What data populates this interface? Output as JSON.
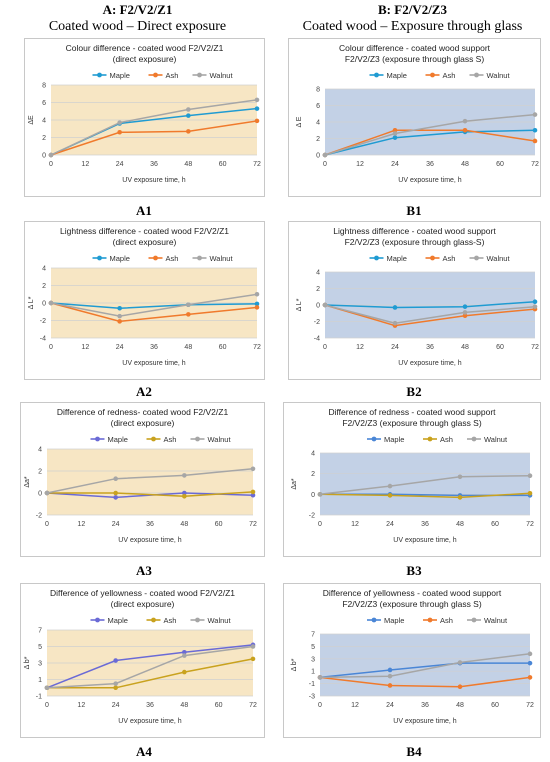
{
  "column_headers": [
    {
      "label": "A: F2/V2/Z1",
      "subtitle": "Coated wood – Direct exposure"
    },
    {
      "label": "B: F2/V2/Z3",
      "subtitle": "Coated wood – Exposure through glass"
    }
  ],
  "panel_labels": [
    "A1",
    "B1",
    "A2",
    "B2",
    "A3",
    "B3",
    "A4",
    "B4"
  ],
  "colors": {
    "bg_direct": "#f7e6c4",
    "bg_glass": "#c3d1e6",
    "maple_1": "#1f9bd2",
    "ash_1": "#f07a2c",
    "walnut": "#a6a6a6",
    "maple_3": "#6a6ad6",
    "ash_3": "#c9a21e",
    "maple_4": "#4a86d6"
  },
  "chart_data": [
    {
      "type": "line",
      "title": "Colour difference - coated wood F2/V2/Z1",
      "subtitle": "(direct exposure)",
      "xlabel": "UV exposure time, h",
      "ylabel": "ΔE",
      "x": [
        0,
        24,
        48,
        72
      ],
      "xticks": [
        0,
        12,
        24,
        36,
        48,
        60,
        72
      ],
      "ylim": [
        0,
        8
      ],
      "yticks": [
        0,
        2,
        4,
        6,
        8
      ],
      "grid": true,
      "legend": "top",
      "background": "direct",
      "series": [
        {
          "name": "Maple",
          "color": "maple_1",
          "values": [
            0,
            3.6,
            4.5,
            5.3
          ]
        },
        {
          "name": "Ash",
          "color": "ash_1",
          "values": [
            0,
            2.6,
            2.7,
            3.9
          ]
        },
        {
          "name": "Walnut",
          "color": "walnut",
          "values": [
            0,
            3.7,
            5.2,
            6.3
          ]
        }
      ]
    },
    {
      "type": "line",
      "title": "Colour difference - coated wood support",
      "subtitle": "F2/V2/Z3 (exposure through glass S)",
      "xlabel": "UV exposure time, h",
      "ylabel": "Δ E",
      "x": [
        0,
        24,
        48,
        72
      ],
      "xticks": [
        0,
        12,
        24,
        36,
        48,
        60,
        72
      ],
      "ylim": [
        0,
        8
      ],
      "yticks": [
        0,
        2,
        4,
        6,
        8
      ],
      "grid": true,
      "legend": "top",
      "background": "glass",
      "series": [
        {
          "name": "Maple",
          "color": "maple_1",
          "values": [
            0,
            2.1,
            2.8,
            3.0
          ]
        },
        {
          "name": "Ash",
          "color": "ash_1",
          "values": [
            0,
            3.0,
            3.0,
            1.7
          ]
        },
        {
          "name": "Walnut",
          "color": "walnut",
          "values": [
            0,
            2.6,
            4.1,
            4.9
          ]
        }
      ]
    },
    {
      "type": "line",
      "title": "Lightness difference - coated wood F2/V2/Z1",
      "subtitle": "(direct exposure)",
      "xlabel": "UV exposure time, h",
      "ylabel": "Δ L*",
      "x": [
        0,
        24,
        48,
        72
      ],
      "xticks": [
        0,
        12,
        24,
        36,
        48,
        60,
        72
      ],
      "ylim": [
        -4,
        4
      ],
      "yticks": [
        -4,
        -2,
        0,
        2,
        4
      ],
      "grid": true,
      "legend": "top",
      "background": "direct",
      "series": [
        {
          "name": "Maple",
          "color": "maple_1",
          "values": [
            0,
            -0.6,
            -0.2,
            -0.1
          ]
        },
        {
          "name": "Ash",
          "color": "ash_1",
          "values": [
            0,
            -2.1,
            -1.3,
            -0.5
          ]
        },
        {
          "name": "Walnut",
          "color": "walnut",
          "values": [
            0,
            -1.5,
            -0.2,
            1.0
          ]
        }
      ]
    },
    {
      "type": "line",
      "title": "Lightness difference - coated wood support",
      "subtitle": "F2/V2/Z3 (exposure through glass-S)",
      "xlabel": "UV exposure time, h",
      "ylabel": "Δ L*",
      "x": [
        0,
        24,
        48,
        72
      ],
      "xticks": [
        0,
        12,
        24,
        36,
        48,
        60,
        72
      ],
      "ylim": [
        -4,
        4
      ],
      "yticks": [
        -4,
        -2,
        0,
        2,
        4
      ],
      "grid": true,
      "legend": "top",
      "background": "glass",
      "series": [
        {
          "name": "Maple",
          "color": "maple_1",
          "values": [
            0,
            -0.3,
            -0.2,
            0.4
          ]
        },
        {
          "name": "Ash",
          "color": "ash_1",
          "values": [
            0,
            -2.5,
            -1.3,
            -0.5
          ]
        },
        {
          "name": "Walnut",
          "color": "walnut",
          "values": [
            0,
            -2.2,
            -0.9,
            -0.2
          ]
        }
      ]
    },
    {
      "type": "line",
      "title": "Difference of redness- coated wood F2/V2/Z1",
      "subtitle": "(direct exposure)",
      "xlabel": "UV exposure time, h",
      "ylabel": "Δa*",
      "x": [
        0,
        24,
        48,
        72
      ],
      "xticks": [
        0,
        12,
        24,
        36,
        48,
        60,
        72
      ],
      "ylim": [
        -2,
        4
      ],
      "yticks": [
        -2,
        0,
        2,
        4
      ],
      "grid": true,
      "legend": "top",
      "background": "direct",
      "series": [
        {
          "name": "Maple",
          "color": "maple_3",
          "values": [
            0,
            -0.4,
            0.0,
            -0.2
          ]
        },
        {
          "name": "Ash",
          "color": "ash_3",
          "values": [
            0,
            0.0,
            -0.3,
            0.1
          ]
        },
        {
          "name": "Walnut",
          "color": "walnut",
          "values": [
            0,
            1.3,
            1.6,
            2.2
          ]
        }
      ]
    },
    {
      "type": "line",
      "title": "Difference of redness - coated wood support",
      "subtitle": "F2/V2/Z3 (exposure through glass S)",
      "xlabel": "UV exposure time, h",
      "ylabel": "Δa*",
      "x": [
        0,
        24,
        48,
        72
      ],
      "xticks": [
        0,
        12,
        24,
        36,
        48,
        60,
        72
      ],
      "ylim": [
        -2,
        4
      ],
      "yticks": [
        -2,
        0,
        2,
        4
      ],
      "grid": true,
      "legend": "top",
      "background": "glass",
      "series": [
        {
          "name": "Maple",
          "color": "maple_4",
          "values": [
            0,
            0.0,
            -0.1,
            -0.1
          ]
        },
        {
          "name": "Ash",
          "color": "ash_3",
          "values": [
            0,
            -0.1,
            -0.3,
            0.1
          ]
        },
        {
          "name": "Walnut",
          "color": "walnut",
          "values": [
            0,
            0.8,
            1.7,
            1.8
          ]
        }
      ]
    },
    {
      "type": "line",
      "title": "Difference of yellowness - coated wood F2/V2/Z1",
      "subtitle": "(direct exposure)",
      "xlabel": "UV exposure time, h",
      "ylabel": "Δ b*",
      "x": [
        0,
        24,
        48,
        72
      ],
      "xticks": [
        0,
        12,
        24,
        36,
        48,
        60,
        72
      ],
      "ylim": [
        -1,
        7
      ],
      "yticks": [
        -1,
        1,
        3,
        5,
        7
      ],
      "grid": true,
      "legend": "top",
      "background": "direct",
      "series": [
        {
          "name": "Maple",
          "color": "maple_3",
          "values": [
            0,
            3.3,
            4.3,
            5.2
          ]
        },
        {
          "name": "Ash",
          "color": "ash_3",
          "values": [
            0,
            0.0,
            1.9,
            3.5
          ]
        },
        {
          "name": "Walnut",
          "color": "walnut",
          "values": [
            0,
            0.5,
            3.9,
            5.0
          ]
        }
      ]
    },
    {
      "type": "line",
      "title": "Difference of yellowness - coated wood support",
      "subtitle": "F2/V2/Z3 (exposure through glass S)",
      "xlabel": "UV exposure time, h",
      "ylabel": "Δ b*",
      "x": [
        0,
        24,
        48,
        72
      ],
      "xticks": [
        0,
        12,
        24,
        36,
        48,
        60,
        72
      ],
      "ylim": [
        -3,
        7
      ],
      "yticks": [
        -3,
        -1,
        1,
        3,
        5,
        7
      ],
      "grid": true,
      "legend": "top",
      "background": "glass",
      "series": [
        {
          "name": "Maple",
          "color": "maple_4",
          "values": [
            0,
            1.2,
            2.3,
            2.3
          ]
        },
        {
          "name": "Ash",
          "color": "ash_1",
          "values": [
            0,
            -1.3,
            -1.5,
            0.0
          ]
        },
        {
          "name": "Walnut",
          "color": "walnut",
          "values": [
            0,
            0.2,
            2.4,
            3.8
          ]
        }
      ]
    }
  ]
}
